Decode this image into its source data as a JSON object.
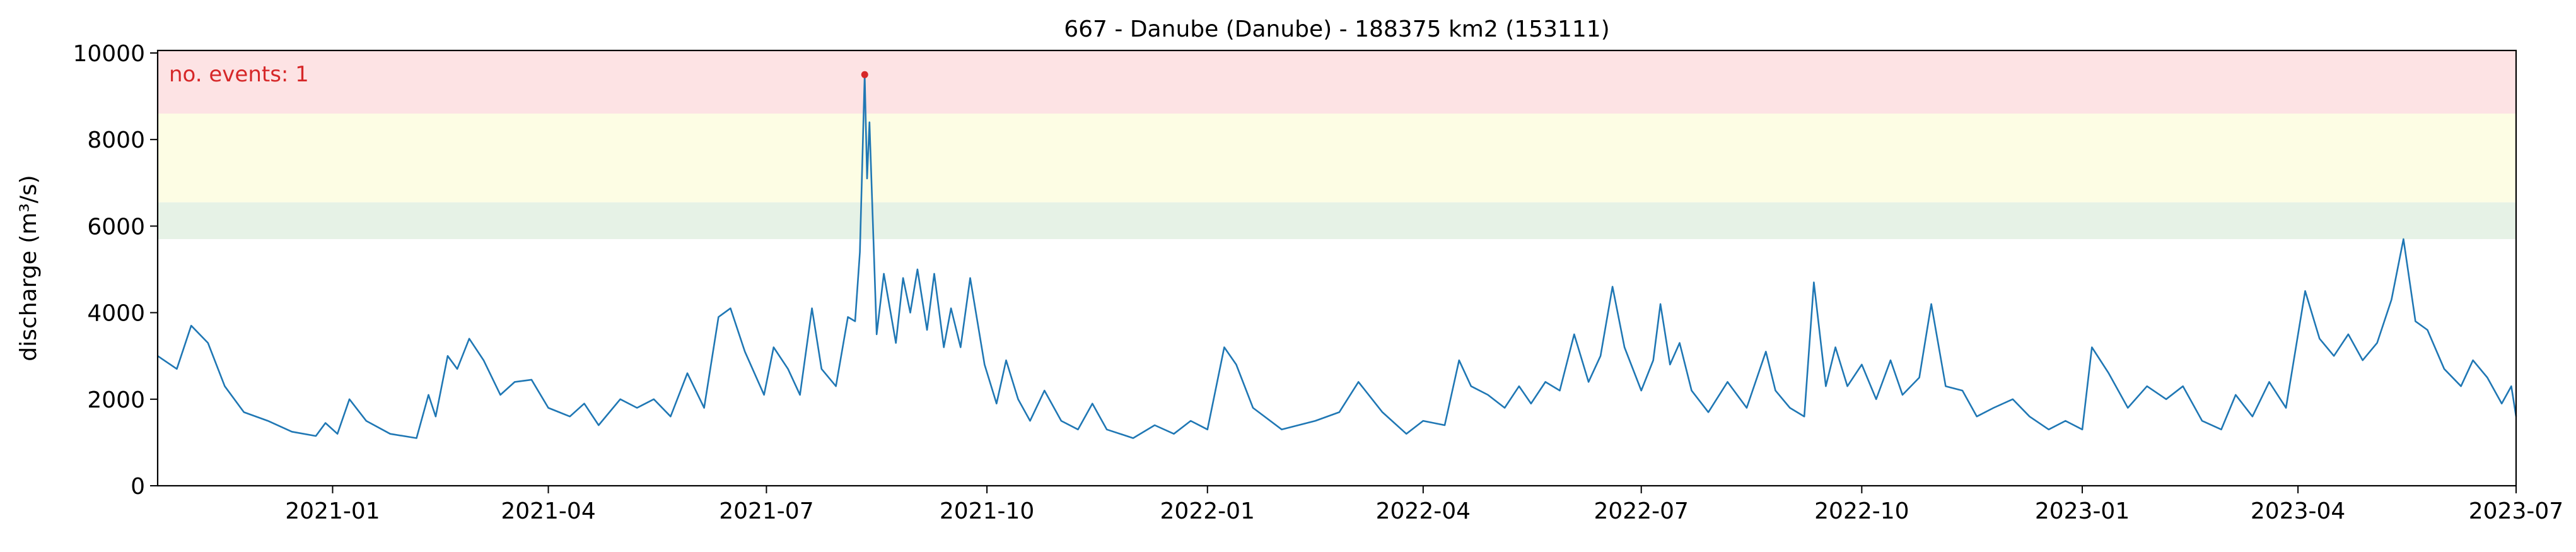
{
  "chart_data": {
    "type": "line",
    "title": "667 - Danube (Danube) - 188375 km2 (153111)",
    "ylabel": "discharge (m³/s)",
    "xlabel": "",
    "annotation": "no. events: 1",
    "ylim": [
      0,
      10000
    ],
    "xlim": [
      "2020-10-20",
      "2023-07-01"
    ],
    "yticks": [
      0,
      2000,
      4000,
      6000,
      8000,
      10000
    ],
    "ytick_labels": [
      "0",
      "2000",
      "4000",
      "6000",
      "8000",
      "10000"
    ],
    "xticks": [
      "2021-01-01",
      "2021-04-01",
      "2021-07-01",
      "2021-10-01",
      "2022-01-01",
      "2022-04-01",
      "2022-07-01",
      "2022-10-01",
      "2023-01-01",
      "2023-04-01",
      "2023-07-01"
    ],
    "xtick_labels": [
      "2021-01",
      "2021-04",
      "2021-07",
      "2021-10",
      "2022-01",
      "2022-04",
      "2022-07",
      "2022-10",
      "2023-01",
      "2023-04",
      "2023-07"
    ],
    "bands": [
      {
        "from": 5700,
        "to": 6550,
        "color": "#e6f2e6"
      },
      {
        "from": 6550,
        "to": 8600,
        "color": "#fdfde4"
      },
      {
        "from": 8600,
        "to": 10200,
        "color": "#fde3e4"
      }
    ],
    "series": [
      {
        "color": "#1f77b4",
        "points": [
          [
            "2020-10-20",
            3000
          ],
          [
            "2020-10-28",
            2700
          ],
          [
            "2020-11-03",
            3700
          ],
          [
            "2020-11-10",
            3300
          ],
          [
            "2020-11-17",
            2300
          ],
          [
            "2020-11-25",
            1700
          ],
          [
            "2020-12-05",
            1500
          ],
          [
            "2020-12-15",
            1250
          ],
          [
            "2020-12-25",
            1150
          ],
          [
            "2020-12-29",
            1450
          ],
          [
            "2021-01-03",
            1200
          ],
          [
            "2021-01-08",
            2000
          ],
          [
            "2021-01-15",
            1500
          ],
          [
            "2021-01-25",
            1200
          ],
          [
            "2021-02-05",
            1100
          ],
          [
            "2021-02-10",
            2100
          ],
          [
            "2021-02-13",
            1600
          ],
          [
            "2021-02-18",
            3000
          ],
          [
            "2021-02-22",
            2700
          ],
          [
            "2021-02-27",
            3400
          ],
          [
            "2021-03-05",
            2900
          ],
          [
            "2021-03-12",
            2100
          ],
          [
            "2021-03-18",
            2400
          ],
          [
            "2021-03-25",
            2450
          ],
          [
            "2021-04-01",
            1800
          ],
          [
            "2021-04-10",
            1600
          ],
          [
            "2021-04-16",
            1900
          ],
          [
            "2021-04-22",
            1400
          ],
          [
            "2021-05-01",
            2000
          ],
          [
            "2021-05-08",
            1800
          ],
          [
            "2021-05-15",
            2000
          ],
          [
            "2021-05-22",
            1600
          ],
          [
            "2021-05-29",
            2600
          ],
          [
            "2021-06-05",
            1800
          ],
          [
            "2021-06-11",
            3900
          ],
          [
            "2021-06-16",
            4100
          ],
          [
            "2021-06-22",
            3100
          ],
          [
            "2021-06-30",
            2100
          ],
          [
            "2021-07-04",
            3200
          ],
          [
            "2021-07-10",
            2700
          ],
          [
            "2021-07-15",
            2100
          ],
          [
            "2021-07-20",
            4100
          ],
          [
            "2021-07-24",
            2700
          ],
          [
            "2021-07-30",
            2300
          ],
          [
            "2021-08-04",
            3900
          ],
          [
            "2021-08-07",
            3800
          ],
          [
            "2021-08-09",
            5400
          ],
          [
            "2021-08-11",
            9500
          ],
          [
            "2021-08-12",
            7100
          ],
          [
            "2021-08-13",
            8400
          ],
          [
            "2021-08-16",
            3500
          ],
          [
            "2021-08-19",
            4900
          ],
          [
            "2021-08-24",
            3300
          ],
          [
            "2021-08-27",
            4800
          ],
          [
            "2021-08-30",
            4000
          ],
          [
            "2021-09-02",
            5000
          ],
          [
            "2021-09-06",
            3600
          ],
          [
            "2021-09-09",
            4900
          ],
          [
            "2021-09-13",
            3200
          ],
          [
            "2021-09-16",
            4100
          ],
          [
            "2021-09-20",
            3200
          ],
          [
            "2021-09-24",
            4800
          ],
          [
            "2021-09-30",
            2800
          ],
          [
            "2021-10-05",
            1900
          ],
          [
            "2021-10-09",
            2900
          ],
          [
            "2021-10-14",
            2000
          ],
          [
            "2021-10-19",
            1500
          ],
          [
            "2021-10-25",
            2200
          ],
          [
            "2021-11-01",
            1500
          ],
          [
            "2021-11-08",
            1300
          ],
          [
            "2021-11-14",
            1900
          ],
          [
            "2021-11-20",
            1300
          ],
          [
            "2021-12-01",
            1100
          ],
          [
            "2021-12-10",
            1400
          ],
          [
            "2021-12-18",
            1200
          ],
          [
            "2021-12-25",
            1500
          ],
          [
            "2022-01-01",
            1300
          ],
          [
            "2022-01-08",
            3200
          ],
          [
            "2022-01-13",
            2800
          ],
          [
            "2022-01-20",
            1800
          ],
          [
            "2022-02-01",
            1300
          ],
          [
            "2022-02-15",
            1500
          ],
          [
            "2022-02-25",
            1700
          ],
          [
            "2022-03-05",
            2400
          ],
          [
            "2022-03-15",
            1700
          ],
          [
            "2022-03-25",
            1200
          ],
          [
            "2022-04-01",
            1500
          ],
          [
            "2022-04-10",
            1400
          ],
          [
            "2022-04-16",
            2900
          ],
          [
            "2022-04-21",
            2300
          ],
          [
            "2022-04-28",
            2100
          ],
          [
            "2022-05-05",
            1800
          ],
          [
            "2022-05-11",
            2300
          ],
          [
            "2022-05-16",
            1900
          ],
          [
            "2022-05-22",
            2400
          ],
          [
            "2022-05-28",
            2200
          ],
          [
            "2022-06-03",
            3500
          ],
          [
            "2022-06-09",
            2400
          ],
          [
            "2022-06-14",
            3000
          ],
          [
            "2022-06-19",
            4600
          ],
          [
            "2022-06-24",
            3200
          ],
          [
            "2022-07-01",
            2200
          ],
          [
            "2022-07-06",
            2900
          ],
          [
            "2022-07-09",
            4200
          ],
          [
            "2022-07-13",
            2800
          ],
          [
            "2022-07-17",
            3300
          ],
          [
            "2022-07-22",
            2200
          ],
          [
            "2022-07-29",
            1700
          ],
          [
            "2022-08-06",
            2400
          ],
          [
            "2022-08-14",
            1800
          ],
          [
            "2022-08-22",
            3100
          ],
          [
            "2022-08-26",
            2200
          ],
          [
            "2022-09-01",
            1800
          ],
          [
            "2022-09-07",
            1600
          ],
          [
            "2022-09-11",
            4700
          ],
          [
            "2022-09-16",
            2300
          ],
          [
            "2022-09-20",
            3200
          ],
          [
            "2022-09-25",
            2300
          ],
          [
            "2022-10-01",
            2800
          ],
          [
            "2022-10-07",
            2000
          ],
          [
            "2022-10-13",
            2900
          ],
          [
            "2022-10-18",
            2100
          ],
          [
            "2022-10-25",
            2500
          ],
          [
            "2022-10-30",
            4200
          ],
          [
            "2022-11-05",
            2300
          ],
          [
            "2022-11-12",
            2200
          ],
          [
            "2022-11-18",
            1600
          ],
          [
            "2022-11-25",
            1800
          ],
          [
            "2022-12-03",
            2000
          ],
          [
            "2022-12-10",
            1600
          ],
          [
            "2022-12-18",
            1300
          ],
          [
            "2022-12-25",
            1500
          ],
          [
            "2023-01-01",
            1300
          ],
          [
            "2023-01-05",
            3200
          ],
          [
            "2023-01-12",
            2600
          ],
          [
            "2023-01-20",
            1800
          ],
          [
            "2023-01-28",
            2300
          ],
          [
            "2023-02-05",
            2000
          ],
          [
            "2023-02-12",
            2300
          ],
          [
            "2023-02-20",
            1500
          ],
          [
            "2023-02-28",
            1300
          ],
          [
            "2023-03-06",
            2100
          ],
          [
            "2023-03-13",
            1600
          ],
          [
            "2023-03-20",
            2400
          ],
          [
            "2023-03-27",
            1800
          ],
          [
            "2023-04-04",
            4500
          ],
          [
            "2023-04-10",
            3400
          ],
          [
            "2023-04-16",
            3000
          ],
          [
            "2023-04-22",
            3500
          ],
          [
            "2023-04-28",
            2900
          ],
          [
            "2023-05-04",
            3300
          ],
          [
            "2023-05-10",
            4300
          ],
          [
            "2023-05-15",
            5700
          ],
          [
            "2023-05-20",
            3800
          ],
          [
            "2023-05-25",
            3600
          ],
          [
            "2023-06-01",
            2700
          ],
          [
            "2023-06-08",
            2300
          ],
          [
            "2023-06-13",
            2900
          ],
          [
            "2023-06-19",
            2500
          ],
          [
            "2023-06-25",
            1900
          ],
          [
            "2023-06-29",
            2300
          ],
          [
            "2023-07-01",
            1600
          ]
        ]
      }
    ],
    "event_marker": {
      "x": "2021-08-11",
      "y": 9500,
      "color": "#d62728"
    }
  }
}
